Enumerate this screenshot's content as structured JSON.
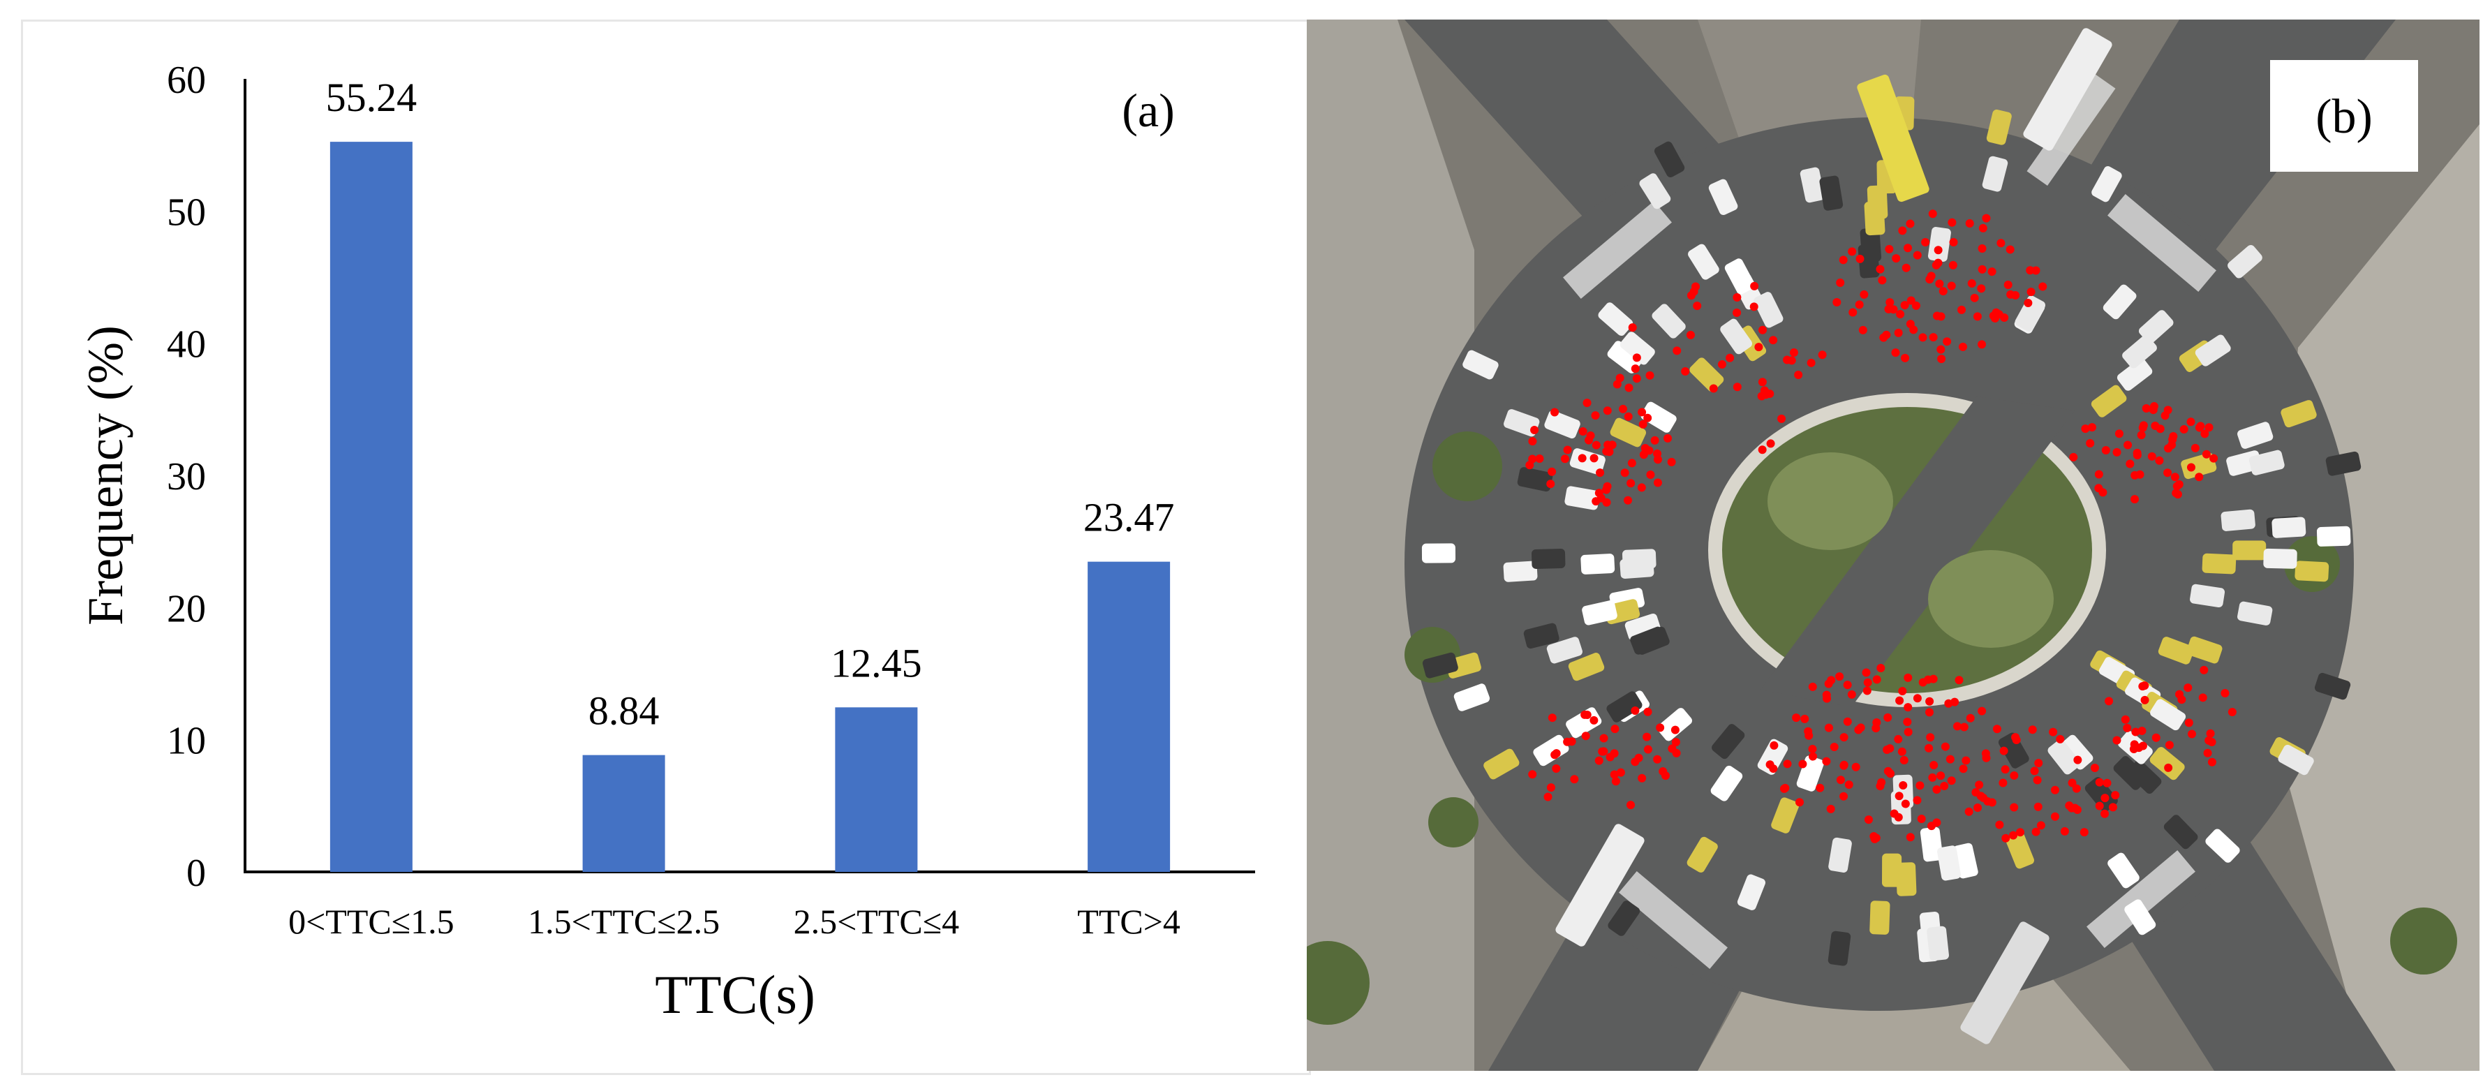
{
  "chart_data": {
    "type": "bar",
    "panel_label": "(a)",
    "categories": [
      "0<TTC≤1.5",
      "1.5<TTC≤2.5",
      "2.5<TTC≤4",
      "TTC>4"
    ],
    "values": [
      55.24,
      8.84,
      12.45,
      23.47
    ],
    "data_labels": [
      "55.24",
      "8.84",
      "12.45",
      "23.47"
    ],
    "xlabel": "TTC(s)",
    "ylabel": "Frequency (%)",
    "ylim": [
      0,
      60
    ],
    "yticks": [
      "0",
      "10",
      "20",
      "30",
      "40",
      "50",
      "60"
    ],
    "grid": false,
    "bar_color": "#4472C4"
  },
  "image_panel": {
    "panel_label": "(b)",
    "point_color": "#ff0000"
  }
}
